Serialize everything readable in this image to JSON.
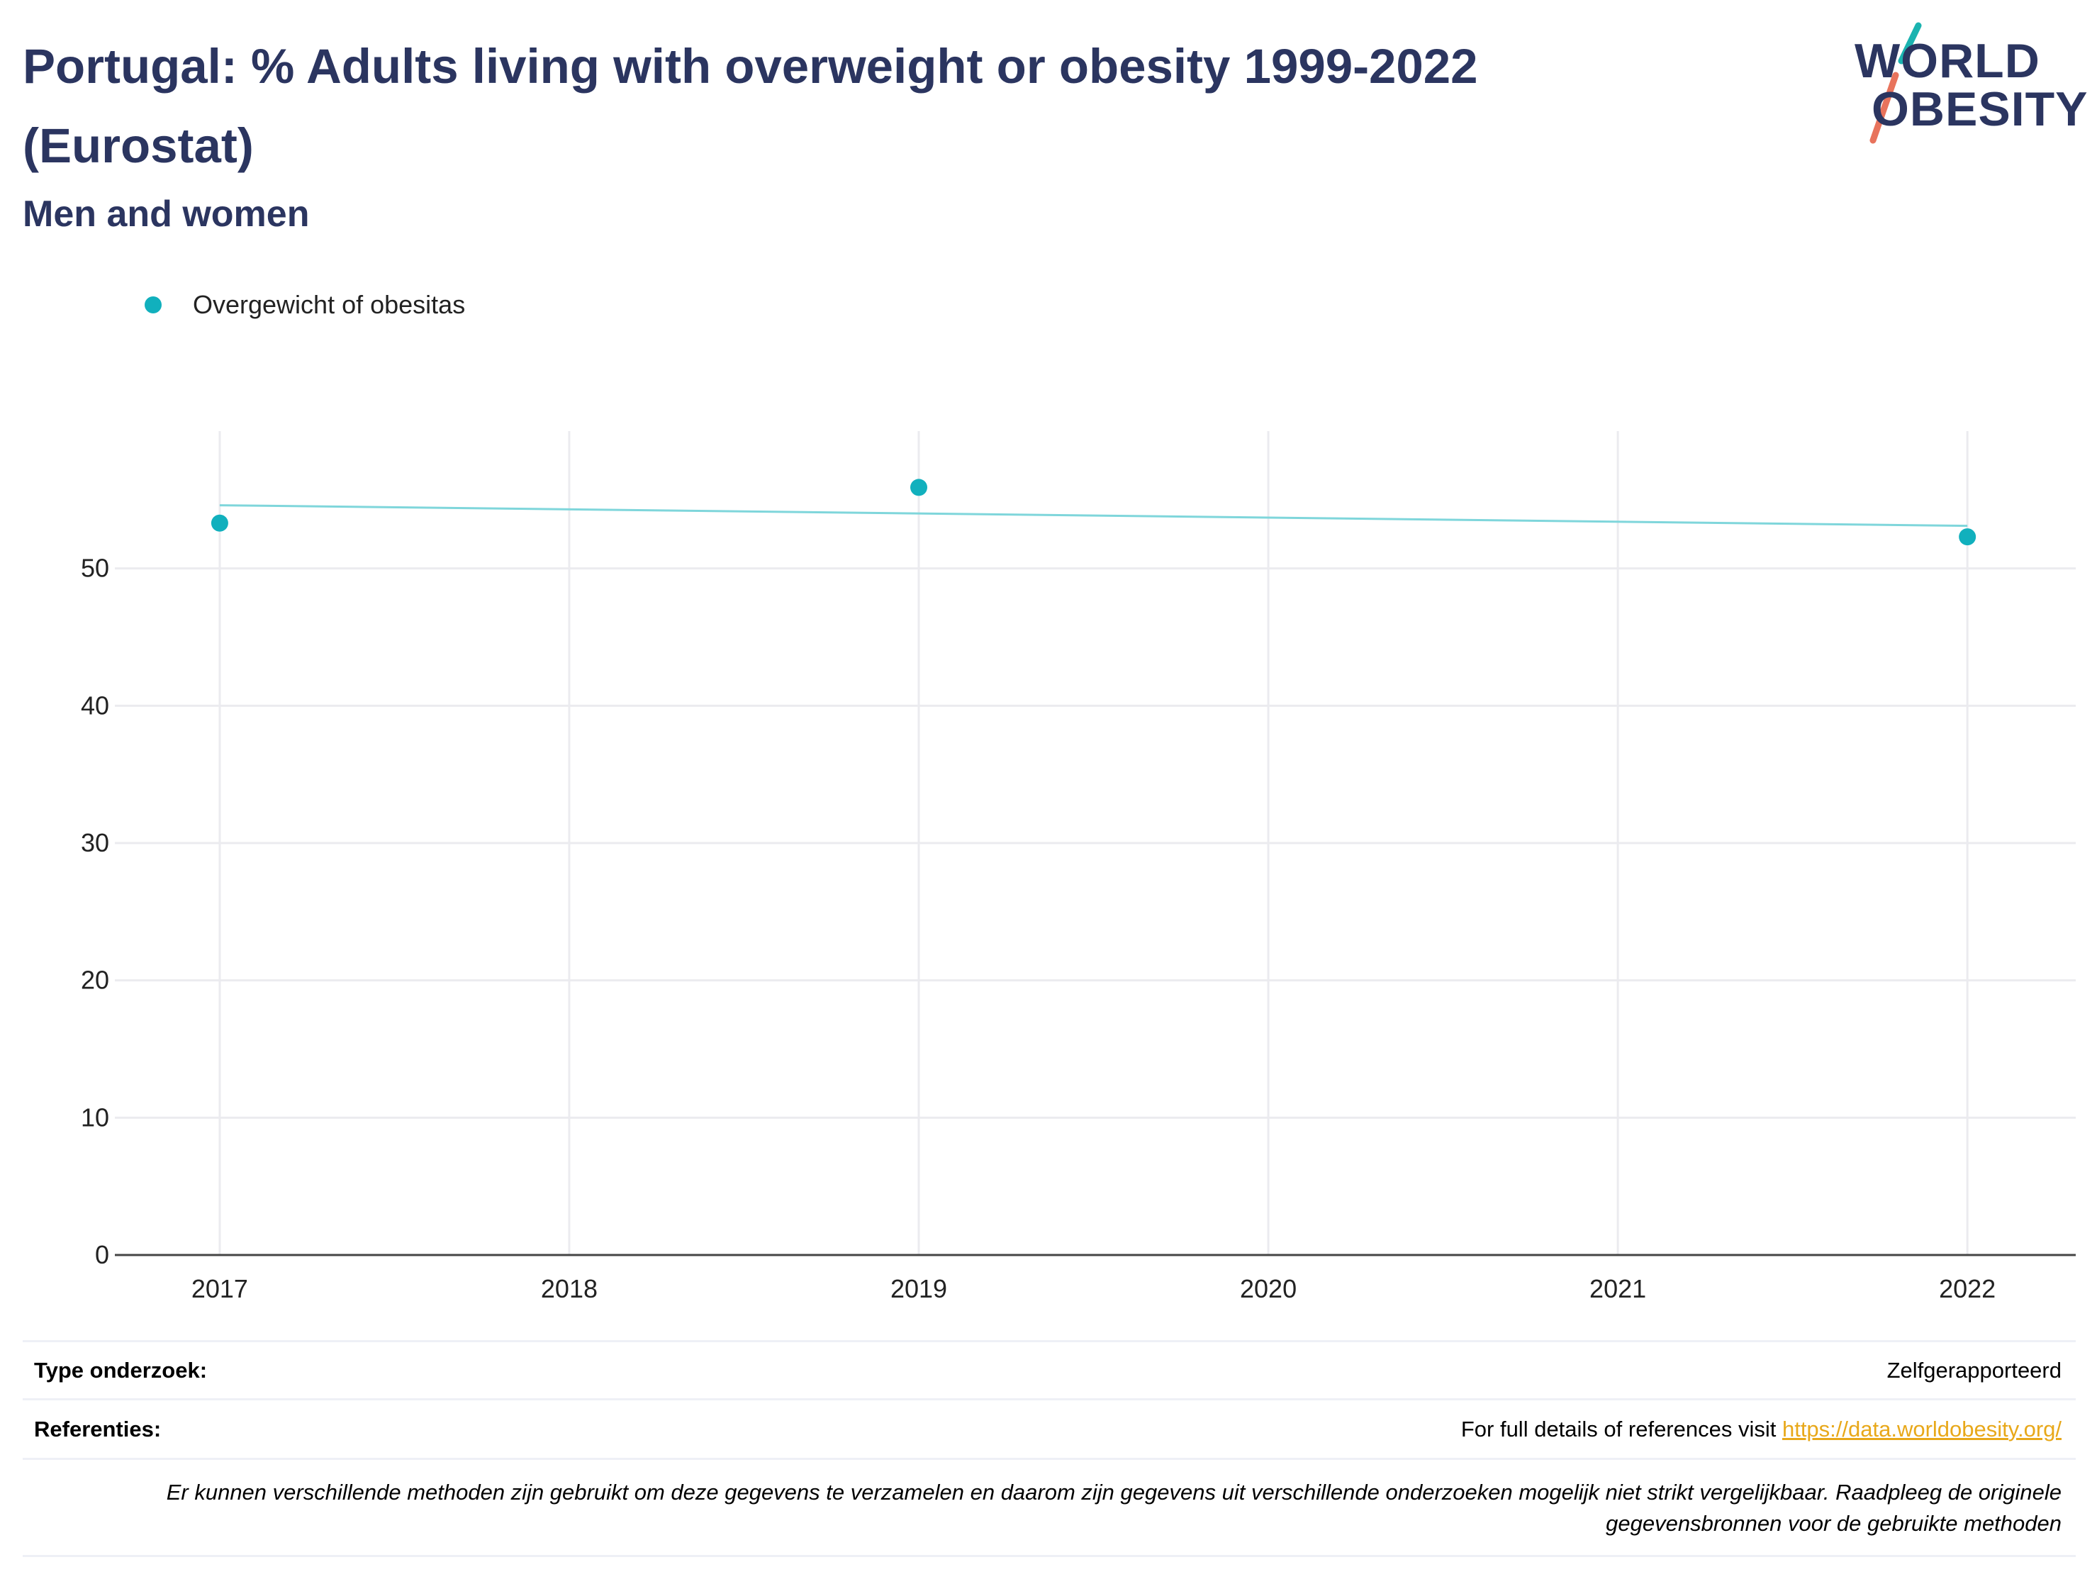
{
  "header": {
    "title": "Portugal: % Adults living with overweight or obesity 1999-2022 (Eurostat)",
    "subtitle": "Men and women"
  },
  "logo": {
    "line1": "WORLD",
    "line2": "OBESITY",
    "colors": {
      "text": "#2b3560",
      "slash_top": "#1bb3b0",
      "slash_bottom": "#e8735c"
    }
  },
  "legend": {
    "label": "Overgewicht of obesitas"
  },
  "chart_data": {
    "type": "scatter",
    "x": [
      2017,
      2019,
      2022
    ],
    "series": [
      {
        "name": "Overgewicht of obesitas",
        "values": [
          53.3,
          55.9,
          52.3
        ],
        "color": "#11b0bd"
      }
    ],
    "trendline": {
      "x": [
        2017,
        2022
      ],
      "y": [
        54.6,
        53.1
      ],
      "color": "#7fd6db"
    },
    "x_ticks": [
      "2017",
      "2018",
      "2019",
      "2020",
      "2021",
      "2022"
    ],
    "y_ticks": [
      "0",
      "10",
      "20",
      "30",
      "40",
      "50"
    ],
    "xlim": [
      2016.7,
      2022.31
    ],
    "ylim": [
      0,
      60
    ],
    "grid": true,
    "legend_position": "top-left"
  },
  "info": {
    "survey_type_label": "Type onderzoek:",
    "survey_type_value": "Zelfgerapporteerd",
    "references_label": "Referenties:",
    "references_text": "For full details of references visit ",
    "references_link": "https://data.worldobesity.org/",
    "note": "Er kunnen verschillende methoden zijn gebruikt om deze gegevens te verzamelen en daarom zijn gegevens uit verschillende onderzoeken mogelijk niet strikt vergelijkbaar. Raadpleeg de originele gegevensbronnen voor de gebruikte methoden"
  }
}
